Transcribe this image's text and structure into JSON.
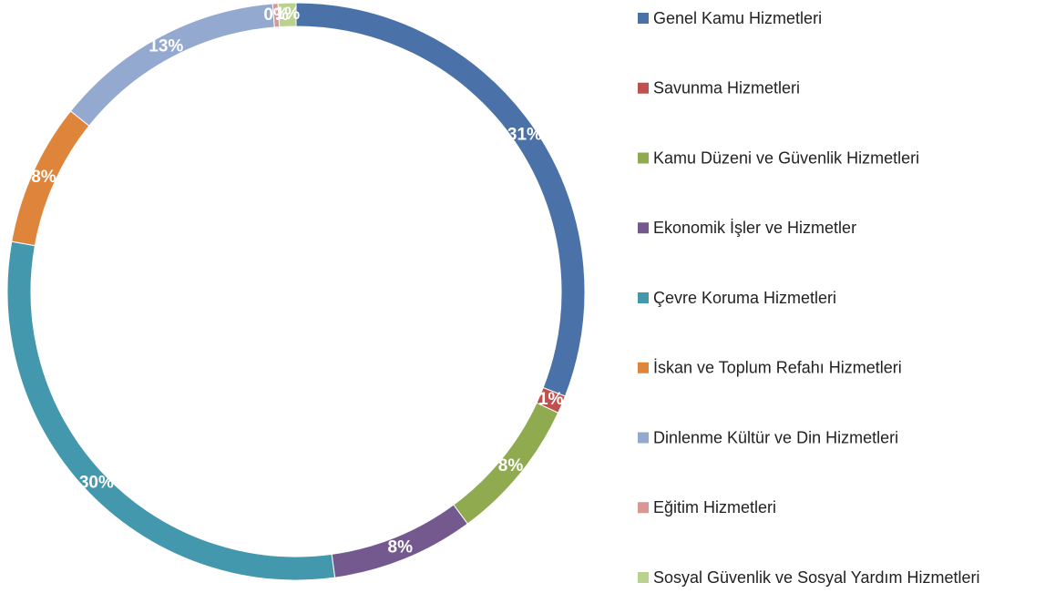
{
  "chart_data": {
    "type": "donut",
    "categories": [
      "Genel Kamu Hizmetleri",
      "Savunma Hizmetleri",
      "Kamu Düzeni ve Güvenlik Hizmetleri",
      "Ekonomik İşler ve Hizmetler",
      "Çevre Koruma Hizmetleri",
      "İskan ve Toplum Refahı Hizmetleri",
      "Dinlenme Kültür ve Din Hizmetleri",
      "Eğitim Hizmetleri",
      "Sosyal Güvenlik ve Sosyal Yardım Hizmetleri"
    ],
    "values": [
      31,
      1,
      8,
      8,
      30,
      8,
      13,
      0.3,
      1
    ],
    "value_labels": [
      "31%",
      "1%",
      "8%",
      "8%",
      "30%",
      "8%",
      "13%",
      "0%",
      "1%"
    ],
    "colors": [
      "#4a72a8",
      "#c0504d",
      "#8faa4f",
      "#74598f",
      "#4398ae",
      "#de843b",
      "#94a9d0",
      "#d99694",
      "#b9d28e"
    ],
    "legend": "right"
  }
}
